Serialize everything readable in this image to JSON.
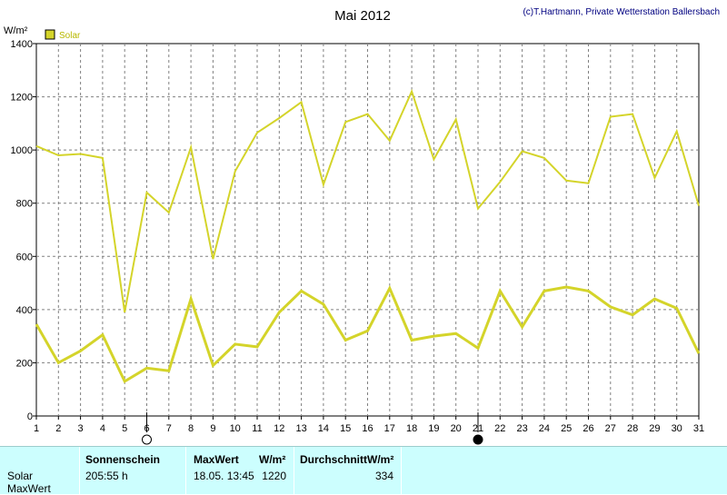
{
  "chart_data": {
    "type": "line",
    "title": "Mai 2012",
    "credit": "(c)T.Hartmann, Private Wetterstation Ballersbach",
    "ylabel": "W/m²",
    "ylim": [
      0,
      1400
    ],
    "yticks": [
      0,
      200,
      400,
      600,
      800,
      1000,
      1200,
      1400
    ],
    "x": [
      1,
      2,
      3,
      4,
      5,
      6,
      7,
      8,
      9,
      10,
      11,
      12,
      13,
      14,
      15,
      16,
      17,
      18,
      19,
      20,
      21,
      22,
      23,
      24,
      25,
      26,
      27,
      28,
      29,
      30,
      31
    ],
    "grid": true,
    "legend": "top-left",
    "series": [
      {
        "name": "Solar",
        "kind": "max",
        "color": "#d4d42a",
        "values": [
          1015,
          980,
          985,
          970,
          390,
          840,
          765,
          1010,
          590,
          920,
          1065,
          1120,
          1180,
          870,
          1105,
          1135,
          1035,
          1220,
          965,
          1115,
          780,
          880,
          995,
          970,
          885,
          875,
          1125,
          1135,
          895,
          1070,
          790
        ]
      },
      {
        "name": "",
        "kind": "average",
        "color": "#d4d42a",
        "values": [
          345,
          200,
          245,
          305,
          130,
          180,
          170,
          440,
          190,
          270,
          260,
          390,
          470,
          420,
          285,
          320,
          480,
          285,
          300,
          310,
          255,
          470,
          335,
          470,
          485,
          470,
          410,
          380,
          440,
          405,
          235
        ]
      }
    ],
    "moon_phases": [
      {
        "day": 6,
        "phase": "full-moon"
      },
      {
        "day": 21,
        "phase": "new-moon"
      }
    ]
  },
  "colors": {
    "background": "#ffffff",
    "plot_border": "#000000",
    "grid": "#808080",
    "series": "#d4d42a",
    "credit": "#000080",
    "summary_bg": "#ccfefe"
  },
  "summary": {
    "row_labels": [
      "Solar",
      "MaxWert"
    ],
    "sonnenschein_header": "Sonnenschein",
    "sonnenschein_value": "205:55 h",
    "maxwert_header": "MaxWert",
    "maxwert_unit": "W/m²",
    "maxwert_date": "18.05.  13:45",
    "maxwert_value": "1220",
    "durchschnitt_header": "Durchschnitt",
    "durchschnitt_unit": "W/m²",
    "durchschnitt_value": "334"
  }
}
